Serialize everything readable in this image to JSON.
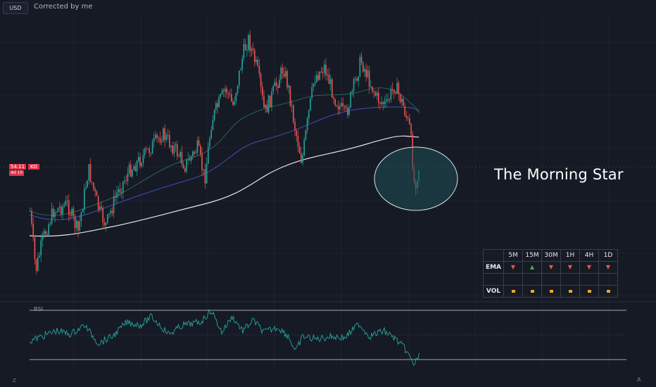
{
  "topbar": {
    "currency_badge": "USD",
    "caption": "Corrected by me"
  },
  "price_tag": {
    "price": "54.11",
    "symbol": "KO",
    "countdown": "4d 1h"
  },
  "annotation": {
    "text": "The Morning Star"
  },
  "signal_table": {
    "timeframes": [
      "5M",
      "15M",
      "30M",
      "1H",
      "4H",
      "1D"
    ],
    "rows": [
      {
        "label": "EMA",
        "signals": [
          "down",
          "up",
          "down",
          "down",
          "down",
          "down"
        ]
      },
      {
        "label": "",
        "signals": [
          "",
          "",
          "",
          "",
          "",
          ""
        ]
      },
      {
        "label": "VOL",
        "signals": [
          "neutral",
          "neutral",
          "neutral",
          "neutral",
          "neutral",
          "neutral"
        ]
      }
    ]
  },
  "rsi_panel": {
    "label": "RSI"
  },
  "corner_icons": {
    "left": "Z",
    "right": "A"
  },
  "colors": {
    "background": "#161a25",
    "bull": "#26a69a",
    "bear": "#ef5350",
    "ema_short": "#2a6e5a",
    "ema_mid": "#3f51b5",
    "ema_long": "#e8e8e8",
    "rsi_line": "#26a69a",
    "highlight_circle": "#1f4e55"
  }
}
